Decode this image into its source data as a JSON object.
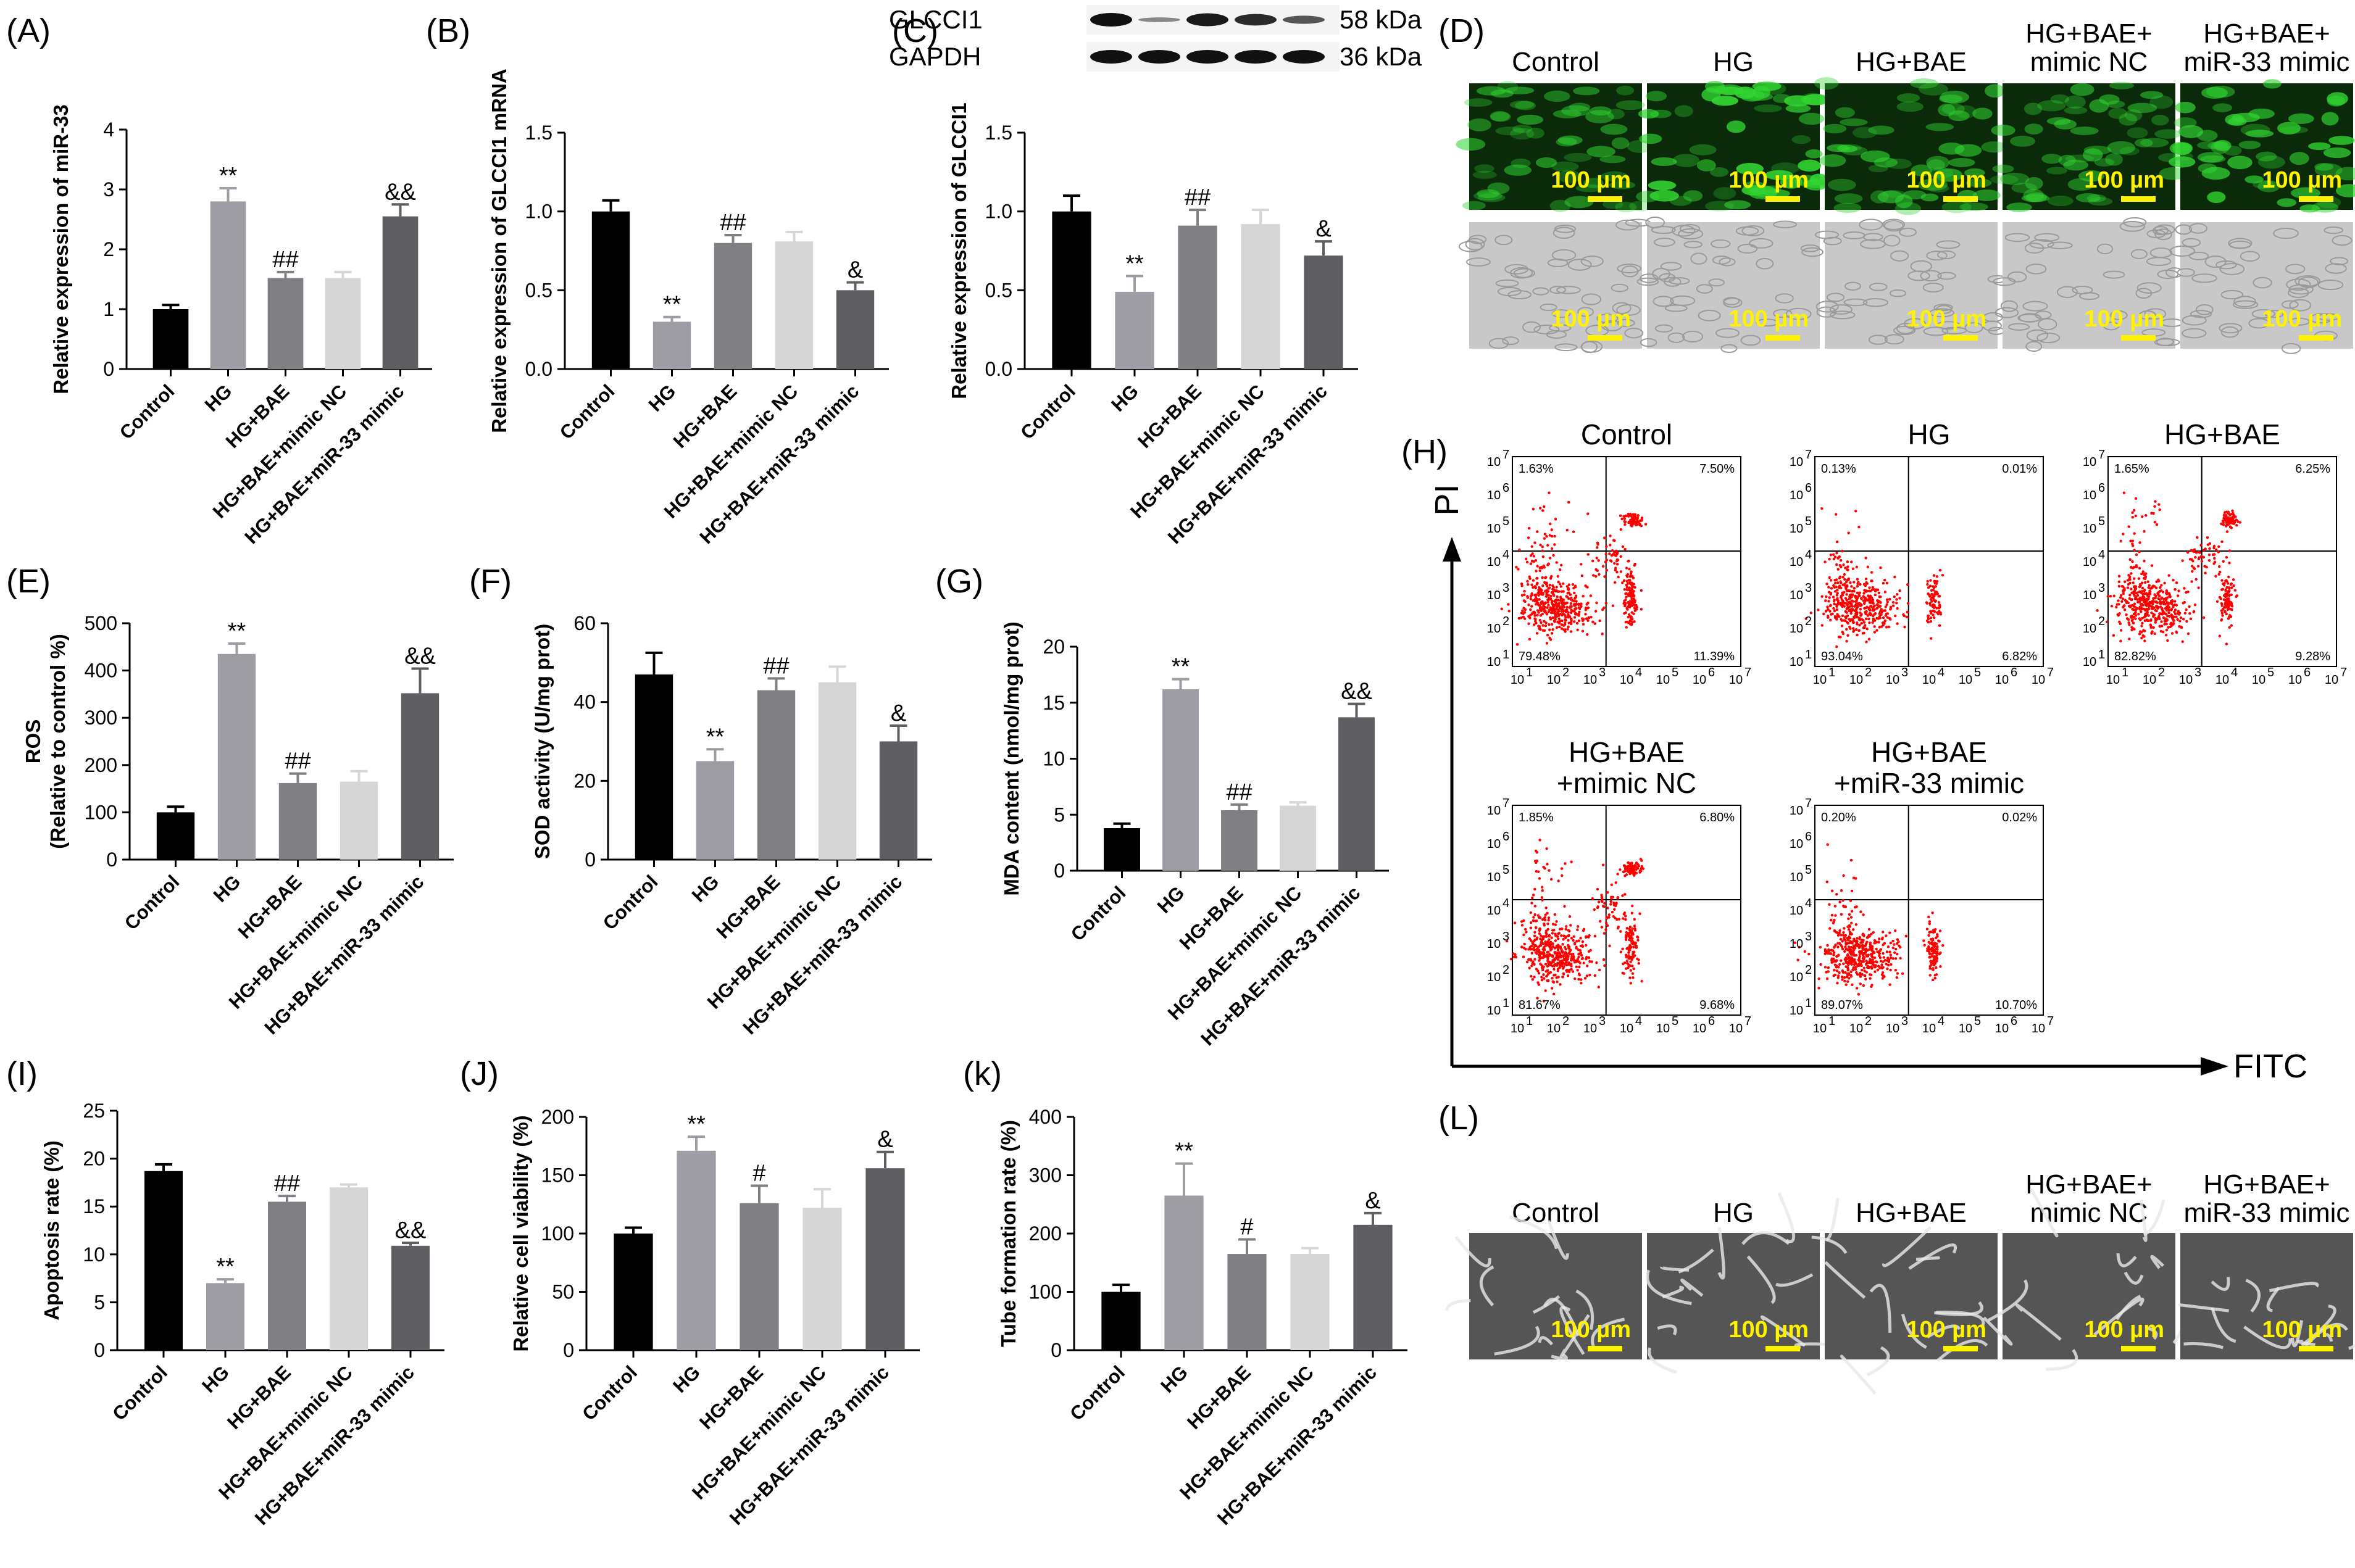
{
  "colors": {
    "bars": [
      "#000000",
      "#9d9da3",
      "#7f7f84",
      "#d6d6d6",
      "#5f5f63"
    ],
    "dots": "#ff0000",
    "fluor_bg": "#0a2a0a",
    "fluor_cell": "#31d431",
    "bright_bg": "#c8c8c8",
    "tube_bg": "#555555",
    "scale": "#fff200"
  },
  "chart_data": [
    {
      "id": "A",
      "panel_label": "(A)",
      "type": "bar",
      "categories": [
        "Control",
        "HG",
        "HG+BAE",
        "HG+BAE+mimic NC",
        "HG+BAE+miR-33 mimic"
      ],
      "values": [
        1.0,
        2.8,
        1.52,
        1.52,
        2.55
      ],
      "errors": [
        0.07,
        0.22,
        0.1,
        0.1,
        0.2
      ],
      "sig": [
        "",
        "**",
        "##",
        "",
        "&&"
      ],
      "ylabel": "Relative expression of miR-33",
      "ylim": [
        0,
        4
      ],
      "ticks": [
        0,
        1,
        2,
        3,
        4
      ],
      "tick_labels": [
        "0",
        "1",
        "2",
        "3",
        "4"
      ]
    },
    {
      "id": "B",
      "panel_label": "(B)",
      "type": "bar",
      "categories": [
        "Control",
        "HG",
        "HG+BAE",
        "HG+BAE+mimic NC",
        "HG+BAE+miR-33 mimic"
      ],
      "values": [
        1.0,
        0.3,
        0.8,
        0.81,
        0.5
      ],
      "errors": [
        0.07,
        0.03,
        0.05,
        0.06,
        0.05
      ],
      "sig": [
        "",
        "**",
        "##",
        "",
        "&"
      ],
      "ylabel": "Relative expression of GLCCI1 mRNA",
      "ylim": [
        0,
        1.5
      ],
      "ticks": [
        0,
        0.5,
        1,
        1.5
      ],
      "tick_labels": [
        "0.0",
        "0.5",
        "1.0",
        "1.5"
      ]
    },
    {
      "id": "C",
      "panel_label": "(C)",
      "type": "bar",
      "categories": [
        "Control",
        "HG",
        "HG+BAE",
        "HG+BAE+mimic NC",
        "HG+BAE+miR-33 mimic"
      ],
      "values": [
        1.0,
        0.49,
        0.91,
        0.92,
        0.72
      ],
      "errors": [
        0.1,
        0.1,
        0.1,
        0.09,
        0.09
      ],
      "sig": [
        "",
        "**",
        "##",
        "",
        "&"
      ],
      "ylabel": "Relative expression of GLCCI1",
      "ylim": [
        0,
        1.5
      ],
      "ticks": [
        0,
        0.5,
        1,
        1.5
      ],
      "tick_labels": [
        "0.0",
        "0.5",
        "1.0",
        "1.5"
      ]
    },
    {
      "id": "E",
      "panel_label": "(E)",
      "type": "bar",
      "categories": [
        "Control",
        "HG",
        "HG+BAE",
        "HG+BAE+mimic NC",
        "HG+BAE+miR-33 mimic"
      ],
      "values": [
        100,
        435,
        162,
        165,
        352
      ],
      "errors": [
        12,
        22,
        20,
        22,
        52
      ],
      "sig": [
        "",
        "**",
        "##",
        "",
        "&&"
      ],
      "ylabel_lines": [
        "ROS",
        "(Relative to control %)"
      ],
      "ylim": [
        0,
        500
      ],
      "ticks": [
        0,
        100,
        200,
        300,
        400,
        500
      ],
      "tick_labels": [
        "0",
        "100",
        "200",
        "300",
        "400",
        "500"
      ]
    },
    {
      "id": "F",
      "panel_label": "(F)",
      "type": "bar",
      "categories": [
        "Control",
        "HG",
        "HG+BAE",
        "HG+BAE+mimic NC",
        "HG+BAE+miR-33 mimic"
      ],
      "values": [
        47,
        25,
        43,
        45,
        30
      ],
      "errors": [
        5.5,
        3,
        3,
        4,
        4
      ],
      "sig": [
        "",
        "**",
        "##",
        "",
        "&"
      ],
      "ylabel": "SOD activity (U/mg prot)",
      "ylim": [
        0,
        60
      ],
      "ticks": [
        0,
        20,
        40,
        60
      ],
      "tick_labels": [
        "0",
        "20",
        "40",
        "60"
      ]
    },
    {
      "id": "G",
      "panel_label": "(G)",
      "type": "bar",
      "categories": [
        "Control",
        "HG",
        "HG+BAE",
        "HG+BAE+mimic NC",
        "HG+BAE+miR-33 mimic"
      ],
      "values": [
        3.8,
        16.2,
        5.4,
        5.8,
        13.7
      ],
      "errors": [
        0.4,
        0.9,
        0.5,
        0.3,
        1.2
      ],
      "sig": [
        "",
        "**",
        "##",
        "",
        "&&"
      ],
      "ylabel": "MDA content (nmol/mg prot)",
      "ylim": [
        0,
        20
      ],
      "ticks": [
        0,
        5,
        10,
        15,
        20
      ],
      "tick_labels": [
        "0",
        "5",
        "10",
        "15",
        "20"
      ]
    },
    {
      "id": "I",
      "panel_label": "(I)",
      "type": "bar",
      "categories": [
        "Control",
        "HG",
        "HG+BAE",
        "HG+BAE+mimic NC",
        "HG+BAE+miR-33 mimic"
      ],
      "values": [
        18.7,
        7.0,
        15.5,
        17.0,
        10.9
      ],
      "errors": [
        0.7,
        0.4,
        0.6,
        0.3,
        0.3
      ],
      "sig": [
        "",
        "**",
        "##",
        "",
        "&&"
      ],
      "ylabel": "Apoptosis rate (%)",
      "ylim": [
        0,
        25
      ],
      "ticks": [
        0,
        5,
        10,
        15,
        20,
        25
      ],
      "tick_labels": [
        "0",
        "5",
        "10",
        "15",
        "20",
        "25"
      ]
    },
    {
      "id": "J",
      "panel_label": "(J)",
      "type": "bar",
      "categories": [
        "Control",
        "HG",
        "HG+BAE",
        "HG+BAE+mimic NC",
        "HG+BAE+miR-33 mimic"
      ],
      "values": [
        100,
        171,
        126,
        122,
        156
      ],
      "errors": [
        5,
        12,
        15,
        16,
        14
      ],
      "sig": [
        "",
        "**",
        "#",
        "",
        "&"
      ],
      "ylabel": "Relative cell viability (%)",
      "ylim": [
        0,
        200
      ],
      "ticks": [
        0,
        50,
        100,
        150,
        200
      ],
      "tick_labels": [
        "0",
        "50",
        "100",
        "150",
        "200"
      ]
    },
    {
      "id": "K",
      "panel_label": "(k)",
      "type": "bar",
      "categories": [
        "Control",
        "HG",
        "HG+BAE",
        "HG+BAE+mimic NC",
        "HG+BAE+miR-33 mimic"
      ],
      "values": [
        100,
        265,
        165,
        165,
        215
      ],
      "errors": [
        12,
        55,
        25,
        10,
        20
      ],
      "sig": [
        "",
        "**",
        "#",
        "",
        "&"
      ],
      "ylabel": "Tube formation rate (%)",
      "ylim": [
        0,
        400
      ],
      "ticks": [
        0,
        100,
        200,
        300,
        400
      ],
      "tick_labels": [
        "0",
        "100",
        "200",
        "300",
        "400"
      ]
    },
    {
      "id": "H",
      "panel_label": "(H)",
      "type": "scatter",
      "xlabel": "FITC",
      "ylabel": "PI",
      "axis_tick_labels": [
        "10",
        "10",
        "10",
        "10",
        "10",
        "10",
        "10"
      ],
      "axis_tick_exponents": [
        "1",
        "2",
        "3",
        "4",
        "5",
        "6",
        "7"
      ],
      "plots": [
        {
          "title": [
            "Control"
          ],
          "quadrants": {
            "ul": "1.63%",
            "ur": "7.50%",
            "ll": "79.48%",
            "lr": "11.39%"
          }
        },
        {
          "title": [
            "HG"
          ],
          "quadrants": {
            "ul": "0.13%",
            "ur": "0.01%",
            "ll": "93.04%",
            "lr": "6.82%"
          }
        },
        {
          "title": [
            "HG+BAE"
          ],
          "quadrants": {
            "ul": "1.65%",
            "ur": "6.25%",
            "ll": "82.82%",
            "lr": "9.28%"
          }
        },
        {
          "title": [
            "HG+BAE",
            "+mimic NC"
          ],
          "quadrants": {
            "ul": "1.85%",
            "ur": "6.80%",
            "ll": "81.67%",
            "lr": "9.68%"
          }
        },
        {
          "title": [
            "HG+BAE",
            "+miR-33 mimic"
          ],
          "quadrants": {
            "ul": "0.20%",
            "ur": "0.02%",
            "ll": "89.07%",
            "lr": "10.70%"
          }
        }
      ]
    }
  ],
  "panel_c_blot": {
    "rows": [
      {
        "protein": "GLCCI1",
        "size": "58 kDa",
        "intensity": [
          1.0,
          0.3,
          0.95,
          0.85,
          0.6
        ]
      },
      {
        "protein": "GAPDH",
        "size": "36 kDa",
        "intensity": [
          1.0,
          1.0,
          1.0,
          1.0,
          1.0
        ]
      }
    ]
  },
  "image_panels": {
    "D": {
      "panel_label": "(D)",
      "columns": [
        [
          "Control"
        ],
        [
          "HG"
        ],
        [
          "HG+BAE"
        ],
        [
          "HG+BAE+",
          "mimic NC"
        ],
        [
          "HG+BAE+",
          "miR-33 mimic"
        ]
      ],
      "scale_bar": "100 µm",
      "fluor_intensity": [
        0.45,
        1.0,
        0.55,
        0.5,
        0.85
      ]
    },
    "L": {
      "panel_label": "(L)",
      "columns": [
        [
          "Control"
        ],
        [
          "HG"
        ],
        [
          "HG+BAE"
        ],
        [
          "HG+BAE+",
          "mimic NC"
        ],
        [
          "HG+BAE+",
          "miR-33 mimic"
        ]
      ],
      "scale_bar": "100 µm"
    }
  }
}
